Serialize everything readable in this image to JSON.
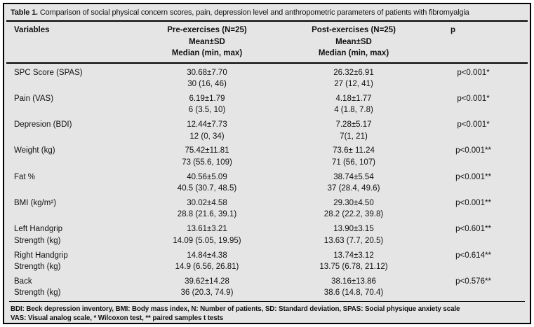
{
  "table": {
    "title_bold": "Table 1.",
    "title_rest": " Comparison of social physical concern scores, pain, depression level and anthropometric parameters of patients with fibromyalgia",
    "header": {
      "variables": "Variables",
      "pre_line1": "Pre-exercises (N=25)",
      "pre_line2": "Mean±SD",
      "pre_line3": "Median (min, max)",
      "post_line1": "Post-exercises (N=25)",
      "post_line2": "Mean±SD",
      "post_line3": "Median (min, max)",
      "p": "p"
    },
    "rows": [
      {
        "variable_line1": "SPC Score (SPAS)",
        "variable_line2": "",
        "pre_mean": "30.68±7.70",
        "pre_median": "30 (16, 46)",
        "post_mean": "26.32±6.91",
        "post_median": "27 (12, 41)",
        "p": "p<0.001*"
      },
      {
        "variable_line1": "Pain (VAS)",
        "variable_line2": "",
        "pre_mean": "6.19±1.79",
        "pre_median": "6 (3.5, 10)",
        "post_mean": "4.18±1.77",
        "post_median": "4 (1.8, 7.8)",
        "p": "p<0.001*"
      },
      {
        "variable_line1": "Depresion (BDI)",
        "variable_line2": "",
        "pre_mean": "12.44±7.73",
        "pre_median": "12 (0, 34)",
        "post_mean": "7.28±5.17",
        "post_median": "7(1, 21)",
        "p": "p<0.001*"
      },
      {
        "variable_line1": "Weight (kg)",
        "variable_line2": "",
        "pre_mean": "75.42±11.81",
        "pre_median": "73 (55.6, 109)",
        "post_mean": "73.6± 11.24",
        "post_median": "71 (56, 107)",
        "p": "p<0.001**"
      },
      {
        "variable_line1": "Fat %",
        "variable_line2": "",
        "pre_mean": "40.56±5.09",
        "pre_median": "40.5 (30.7, 48.5)",
        "post_mean": "38.74±5.54",
        "post_median": "37 (28.4, 49.6)",
        "p": "p<0.001**"
      },
      {
        "variable_line1": "BMI (kg/m²)",
        "variable_line2": "",
        "pre_mean": "30.02±4.58",
        "pre_median": "28.8 (21.6, 39.1)",
        "post_mean": "29.30±4.50",
        "post_median": "28.2 (22.2, 39.8)",
        "p": "p<0.001**"
      },
      {
        "variable_line1": "Left Handgrip",
        "variable_line2": "Strength (kg)",
        "pre_mean": "13.61±3.21",
        "pre_median": "14.09 (5.05, 19.95)",
        "post_mean": "13.90±3.15",
        "post_median": "13.63 (7.7, 20.5)",
        "p": "p<0.601**"
      },
      {
        "variable_line1": "Right Handgrip",
        "variable_line2": "Strength (kg)",
        "pre_mean": "14.84±4.38",
        "pre_median": "14.9 (6.56, 26.81)",
        "post_mean": "13.74±3.12",
        "post_median": "13.75 (6.78, 21.12)",
        "p": "p<0.614**"
      },
      {
        "variable_line1": "Back",
        "variable_line2": "Strength (kg)",
        "pre_mean": "39.62±14.28",
        "pre_median": "36 (20.3, 74.9)",
        "post_mean": "38.16±13.86",
        "post_median": "38.6 (14.8, 70.4)",
        "p": "p<0.576**"
      }
    ],
    "footnote_line1": "BDI: Beck depression inventory, BMI: Body mass index, N: Number of patients, SD: Standard deviation, SPAS: Social physique anxiety scale",
    "footnote_line2": "VAS: Visual analog scale, * Wilcoxon test, ** paired samples t tests",
    "colors": {
      "background": "#e5e5e5",
      "border": "#000000",
      "text": "#111111"
    }
  }
}
